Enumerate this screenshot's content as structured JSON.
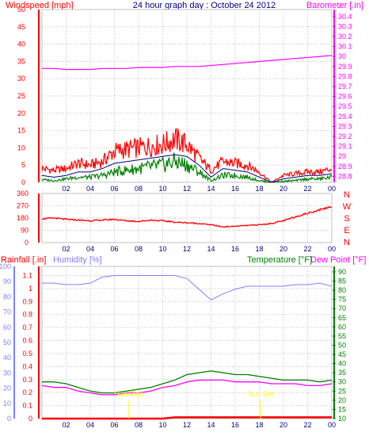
{
  "header": {
    "title": "24 hour graph day : October 24 2012",
    "wind_label": "Windspeed [mph]",
    "baro_label": "Barometer [.in]"
  },
  "colors": {
    "wind": "#ff0000",
    "gust": "#000080",
    "avg": "#008000",
    "baro": "#ff00ff",
    "direction": "#ff0000",
    "humidity": "#8080ff",
    "temperature": "#008000",
    "dewpoint": "#ff00ff",
    "rain": "#ff0000",
    "frame": "#c0c0c0",
    "sun": "#ffff00"
  },
  "chart_data": [
    {
      "type": "line",
      "panel": "wind-barometer",
      "x_ticks": [
        "02",
        "04",
        "06",
        "08",
        "10",
        "12",
        "14",
        "16",
        "18",
        "20",
        "22",
        "00"
      ],
      "y_left_ticks": [
        "0",
        "5",
        "10",
        "15",
        "20",
        "25",
        "30",
        "35",
        "40",
        "45",
        "50"
      ],
      "y_left_range": [
        0,
        50
      ],
      "y_right_ticks": [
        "28.8",
        "28.9",
        "29",
        "29.1",
        "29.2",
        "29.3",
        "29.4",
        "29.5",
        "29.6",
        "29.7",
        "29.8",
        "29.9",
        "30",
        "30.1",
        "30.2",
        "30.3",
        "30.4"
      ],
      "y_right_range": [
        28.74,
        30.47
      ],
      "x_hours": [
        0,
        1,
        2,
        3,
        4,
        5,
        6,
        7,
        8,
        9,
        10,
        11,
        12,
        13,
        14,
        15,
        16,
        17,
        18,
        19,
        20,
        21,
        22,
        23,
        24
      ],
      "series": [
        {
          "name": "Windspeed [mph]",
          "axis": "left",
          "values": [
            4,
            3.5,
            4,
            5.5,
            5,
            6,
            9,
            9.5,
            10,
            10.5,
            11,
            12.5,
            11,
            7,
            3.5,
            6,
            5.5,
            5,
            3,
            0,
            2,
            2.5,
            3,
            3,
            4
          ]
        },
        {
          "axis": "left",
          "values": [
            2,
            1.5,
            2,
            3,
            3,
            4,
            5.5,
            6,
            6.5,
            7,
            7.5,
            8,
            7.5,
            5,
            1.5,
            4,
            3.5,
            3,
            1.5,
            0,
            1,
            1.5,
            2,
            2,
            2.5
          ]
        },
        {
          "axis": "left",
          "values": [
            0.8,
            0.5,
            1,
            1.5,
            1.5,
            2,
            3,
            3.5,
            4,
            4.5,
            5,
            6,
            5,
            3,
            0.5,
            2,
            2,
            1.5,
            0.5,
            0,
            0.3,
            0.5,
            1,
            1,
            1.5
          ]
        },
        {
          "name": "Barometer [.in]",
          "axis": "right",
          "values": [
            29.88,
            29.88,
            29.87,
            29.87,
            29.87,
            29.88,
            29.88,
            29.88,
            29.89,
            29.89,
            29.89,
            29.9,
            29.9,
            29.9,
            29.91,
            29.92,
            29.93,
            29.94,
            29.95,
            29.96,
            29.97,
            29.98,
            29.99,
            30.0,
            30.01
          ]
        }
      ]
    },
    {
      "type": "line",
      "panel": "wind-direction",
      "x_ticks": [
        "02",
        "04",
        "06",
        "08",
        "10",
        "12",
        "14",
        "16",
        "18",
        "20",
        "22",
        "00"
      ],
      "y_ticks": [
        "0",
        "90",
        "180",
        "270",
        "360"
      ],
      "y_range": [
        0,
        360
      ],
      "compass": [
        "N",
        "W",
        "S",
        "E",
        "N"
      ],
      "x_hours": [
        0,
        1,
        2,
        3,
        4,
        5,
        6,
        7,
        8,
        9,
        10,
        11,
        12,
        13,
        14,
        15,
        16,
        17,
        18,
        19,
        20,
        21,
        22,
        23,
        24
      ],
      "series": [
        {
          "values": [
            175,
            180,
            170,
            165,
            160,
            165,
            170,
            160,
            155,
            165,
            160,
            150,
            145,
            140,
            130,
            115,
            120,
            125,
            130,
            140,
            160,
            190,
            215,
            240,
            265
          ]
        }
      ]
    },
    {
      "type": "line",
      "panel": "rain-humidity-temperature",
      "labels": {
        "rain": "Rainfall [.in]",
        "humidity": "Humidity [%]",
        "temperature": "Temperature [°F]",
        "dewpoint": "Dew Point [°F]"
      },
      "x_ticks": [
        "02",
        "04",
        "06",
        "08",
        "10",
        "12",
        "14",
        "16",
        "18",
        "20",
        "22",
        "00"
      ],
      "y_rain_ticks": [
        "0",
        "0.1",
        "0.2",
        "0.3",
        "0.4",
        "0.5",
        "0.6",
        "0.7",
        "0.8",
        "0.9",
        "1",
        "1.1"
      ],
      "y_rain_range": [
        0,
        1.17
      ],
      "y_humidity_ticks": [
        "0",
        "10",
        "20",
        "30",
        "40",
        "50",
        "60",
        "70",
        "80",
        "90",
        "100"
      ],
      "y_humidity_range": [
        0,
        100
      ],
      "y_temp_ticks": [
        "10",
        "15",
        "20",
        "25",
        "30",
        "35",
        "40",
        "45",
        "50",
        "55",
        "60",
        "65",
        "70",
        "75",
        "80",
        "85",
        "90"
      ],
      "y_temp_range": [
        10,
        93
      ],
      "sun_labels": [
        {
          "label": "Sun Rise",
          "hour": 7.2
        },
        {
          "label": "Sun Set",
          "hour": 18.1
        }
      ],
      "x_hours": [
        0,
        1,
        2,
        3,
        4,
        5,
        6,
        7,
        8,
        9,
        10,
        11,
        12,
        13,
        14,
        15,
        16,
        17,
        18,
        19,
        20,
        21,
        22,
        23,
        24
      ],
      "series": [
        {
          "name": "Humidity [%]",
          "axis": "humidity",
          "values": [
            89,
            89,
            88,
            88,
            89,
            93,
            94,
            94,
            94,
            94,
            94,
            94,
            92,
            85,
            78,
            82,
            85,
            87,
            87,
            87,
            87,
            88,
            88,
            89,
            87
          ]
        },
        {
          "name": "Temperature [°F]",
          "axis": "temperature",
          "values": [
            30,
            30,
            29,
            27,
            25,
            24,
            24,
            25,
            26,
            27,
            29,
            31,
            34,
            35,
            36,
            35,
            34,
            34,
            33,
            32,
            31,
            31,
            31,
            30,
            31
          ]
        },
        {
          "name": "Dew Point [°F]",
          "axis": "temperature",
          "values": [
            28,
            27,
            27,
            25,
            24,
            23,
            23,
            24,
            24,
            25,
            27,
            28,
            30,
            31,
            31,
            31,
            30,
            30,
            30,
            29,
            29,
            29,
            28,
            28,
            29
          ]
        },
        {
          "name": "Rainfall [.in]",
          "axis": "rain",
          "values": [
            0,
            0,
            0,
            0,
            0,
            0,
            0,
            0,
            0,
            0,
            0,
            0.01,
            0.01,
            0.01,
            0.01,
            0.01,
            0.01,
            0.01,
            0.01,
            0.01,
            0.01,
            0.01,
            0.01,
            0.01,
            0.01
          ]
        }
      ]
    }
  ]
}
